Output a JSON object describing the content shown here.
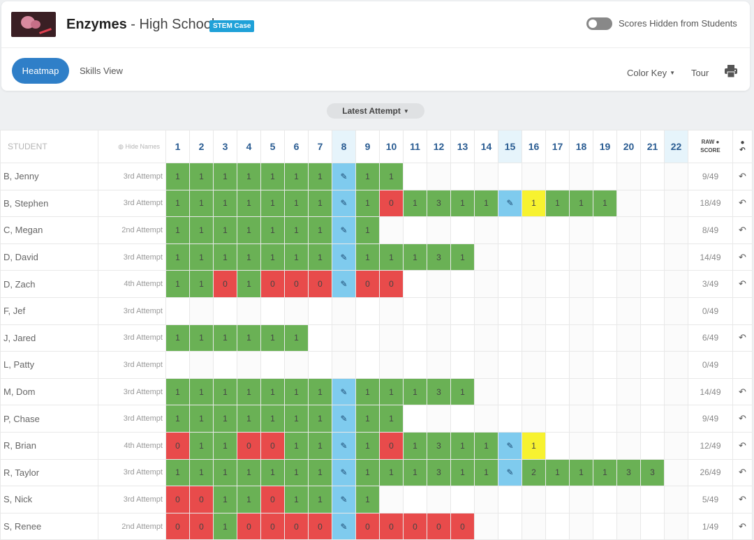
{
  "header": {
    "title_main": "Enzymes",
    "title_sub": " - High School",
    "badge": "STEM Case",
    "toggle_label": "Scores Hidden from Students"
  },
  "toolbar": {
    "heatmap_label": "Heatmap",
    "skills_label": "Skills View",
    "colorkey_label": "Color Key",
    "tour_label": "Tour"
  },
  "attempt_dropdown": "Latest Attempt",
  "table": {
    "student_header": "STUDENT",
    "hide_names": "Hide Names",
    "raw_header_line1": "RAW",
    "raw_header_line2": "SCORE",
    "questions": [
      "1",
      "2",
      "3",
      "4",
      "5",
      "6",
      "7",
      "8",
      "9",
      "10",
      "11",
      "12",
      "13",
      "14",
      "15",
      "16",
      "17",
      "18",
      "19",
      "20",
      "21",
      "22"
    ],
    "highlighted_questions": [
      "8",
      "15",
      "22"
    ],
    "cell_colors": {
      "g": "#6ab155",
      "r": "#e84b4b",
      "y": "#f7f230",
      "p": "#7fcbee"
    },
    "rows": [
      {
        "name": "B, Jenny",
        "attempt": "3rd Attempt",
        "raw": "9/49",
        "undo": true,
        "cells": [
          [
            "g",
            "1"
          ],
          [
            "g",
            "1"
          ],
          [
            "g",
            "1"
          ],
          [
            "g",
            "1"
          ],
          [
            "g",
            "1"
          ],
          [
            "g",
            "1"
          ],
          [
            "g",
            "1"
          ],
          [
            "p",
            "✎"
          ],
          [
            "g",
            "1"
          ],
          [
            "g",
            "1"
          ]
        ]
      },
      {
        "name": "B, Stephen",
        "attempt": "3rd Attempt",
        "raw": "18/49",
        "undo": true,
        "cells": [
          [
            "g",
            "1"
          ],
          [
            "g",
            "1"
          ],
          [
            "g",
            "1"
          ],
          [
            "g",
            "1"
          ],
          [
            "g",
            "1"
          ],
          [
            "g",
            "1"
          ],
          [
            "g",
            "1"
          ],
          [
            "p",
            "✎"
          ],
          [
            "g",
            "1"
          ],
          [
            "r",
            "0"
          ],
          [
            "g",
            "1"
          ],
          [
            "g",
            "3"
          ],
          [
            "g",
            "1"
          ],
          [
            "g",
            "1"
          ],
          [
            "p",
            "✎"
          ],
          [
            "y",
            "1"
          ],
          [
            "g",
            "1"
          ],
          [
            "g",
            "1"
          ],
          [
            "g",
            "1"
          ]
        ]
      },
      {
        "name": "C, Megan",
        "attempt": "2nd Attempt",
        "raw": "8/49",
        "undo": true,
        "cells": [
          [
            "g",
            "1"
          ],
          [
            "g",
            "1"
          ],
          [
            "g",
            "1"
          ],
          [
            "g",
            "1"
          ],
          [
            "g",
            "1"
          ],
          [
            "g",
            "1"
          ],
          [
            "g",
            "1"
          ],
          [
            "p",
            "✎"
          ],
          [
            "g",
            "1"
          ]
        ]
      },
      {
        "name": "D, David",
        "attempt": "3rd Attempt",
        "raw": "14/49",
        "undo": true,
        "cells": [
          [
            "g",
            "1"
          ],
          [
            "g",
            "1"
          ],
          [
            "g",
            "1"
          ],
          [
            "g",
            "1"
          ],
          [
            "g",
            "1"
          ],
          [
            "g",
            "1"
          ],
          [
            "g",
            "1"
          ],
          [
            "p",
            "✎"
          ],
          [
            "g",
            "1"
          ],
          [
            "g",
            "1"
          ],
          [
            "g",
            "1"
          ],
          [
            "g",
            "3"
          ],
          [
            "g",
            "1"
          ]
        ]
      },
      {
        "name": "D, Zach",
        "attempt": "4th Attempt",
        "raw": "3/49",
        "undo": true,
        "cells": [
          [
            "g",
            "1"
          ],
          [
            "g",
            "1"
          ],
          [
            "r",
            "0"
          ],
          [
            "g",
            "1"
          ],
          [
            "r",
            "0"
          ],
          [
            "r",
            "0"
          ],
          [
            "r",
            "0"
          ],
          [
            "p",
            "✎"
          ],
          [
            "r",
            "0"
          ],
          [
            "r",
            "0"
          ]
        ]
      },
      {
        "name": "F, Jef",
        "attempt": "3rd Attempt",
        "raw": "0/49",
        "undo": false,
        "cells": []
      },
      {
        "name": "J, Jared",
        "attempt": "3rd Attempt",
        "raw": "6/49",
        "undo": true,
        "cells": [
          [
            "g",
            "1"
          ],
          [
            "g",
            "1"
          ],
          [
            "g",
            "1"
          ],
          [
            "g",
            "1"
          ],
          [
            "g",
            "1"
          ],
          [
            "g",
            "1"
          ]
        ]
      },
      {
        "name": "L, Patty",
        "attempt": "3rd Attempt",
        "raw": "0/49",
        "undo": false,
        "cells": []
      },
      {
        "name": "M, Dom",
        "attempt": "3rd Attempt",
        "raw": "14/49",
        "undo": true,
        "cells": [
          [
            "g",
            "1"
          ],
          [
            "g",
            "1"
          ],
          [
            "g",
            "1"
          ],
          [
            "g",
            "1"
          ],
          [
            "g",
            "1"
          ],
          [
            "g",
            "1"
          ],
          [
            "g",
            "1"
          ],
          [
            "p",
            "✎"
          ],
          [
            "g",
            "1"
          ],
          [
            "g",
            "1"
          ],
          [
            "g",
            "1"
          ],
          [
            "g",
            "3"
          ],
          [
            "g",
            "1"
          ]
        ]
      },
      {
        "name": "P, Chase",
        "attempt": "3rd Attempt",
        "raw": "9/49",
        "undo": true,
        "cells": [
          [
            "g",
            "1"
          ],
          [
            "g",
            "1"
          ],
          [
            "g",
            "1"
          ],
          [
            "g",
            "1"
          ],
          [
            "g",
            "1"
          ],
          [
            "g",
            "1"
          ],
          [
            "g",
            "1"
          ],
          [
            "p",
            "✎"
          ],
          [
            "g",
            "1"
          ],
          [
            "g",
            "1"
          ]
        ]
      },
      {
        "name": "R, Brian",
        "attempt": "4th Attempt",
        "raw": "12/49",
        "undo": true,
        "cells": [
          [
            "r",
            "0"
          ],
          [
            "g",
            "1"
          ],
          [
            "g",
            "1"
          ],
          [
            "r",
            "0"
          ],
          [
            "r",
            "0"
          ],
          [
            "g",
            "1"
          ],
          [
            "g",
            "1"
          ],
          [
            "p",
            "✎"
          ],
          [
            "g",
            "1"
          ],
          [
            "r",
            "0"
          ],
          [
            "g",
            "1"
          ],
          [
            "g",
            "3"
          ],
          [
            "g",
            "1"
          ],
          [
            "g",
            "1"
          ],
          [
            "p",
            "✎"
          ],
          [
            "y",
            "1"
          ]
        ]
      },
      {
        "name": "R, Taylor",
        "attempt": "3rd Attempt",
        "raw": "26/49",
        "undo": true,
        "cells": [
          [
            "g",
            "1"
          ],
          [
            "g",
            "1"
          ],
          [
            "g",
            "1"
          ],
          [
            "g",
            "1"
          ],
          [
            "g",
            "1"
          ],
          [
            "g",
            "1"
          ],
          [
            "g",
            "1"
          ],
          [
            "p",
            "✎"
          ],
          [
            "g",
            "1"
          ],
          [
            "g",
            "1"
          ],
          [
            "g",
            "1"
          ],
          [
            "g",
            "3"
          ],
          [
            "g",
            "1"
          ],
          [
            "g",
            "1"
          ],
          [
            "p",
            "✎"
          ],
          [
            "g",
            "2"
          ],
          [
            "g",
            "1"
          ],
          [
            "g",
            "1"
          ],
          [
            "g",
            "1"
          ],
          [
            "g",
            "3"
          ],
          [
            "g",
            "3"
          ]
        ]
      },
      {
        "name": "S, Nick",
        "attempt": "3rd Attempt",
        "raw": "5/49",
        "undo": true,
        "cells": [
          [
            "r",
            "0"
          ],
          [
            "r",
            "0"
          ],
          [
            "g",
            "1"
          ],
          [
            "g",
            "1"
          ],
          [
            "r",
            "0"
          ],
          [
            "g",
            "1"
          ],
          [
            "g",
            "1"
          ],
          [
            "p",
            "✎"
          ],
          [
            "g",
            "1"
          ]
        ]
      },
      {
        "name": "S, Renee",
        "attempt": "2nd Attempt",
        "raw": "1/49",
        "undo": true,
        "cells": [
          [
            "r",
            "0"
          ],
          [
            "r",
            "0"
          ],
          [
            "g",
            "1"
          ],
          [
            "r",
            "0"
          ],
          [
            "r",
            "0"
          ],
          [
            "r",
            "0"
          ],
          [
            "r",
            "0"
          ],
          [
            "p",
            "✎"
          ],
          [
            "r",
            "0"
          ],
          [
            "r",
            "0"
          ],
          [
            "r",
            "0"
          ],
          [
            "r",
            "0"
          ],
          [
            "r",
            "0"
          ]
        ]
      }
    ]
  }
}
